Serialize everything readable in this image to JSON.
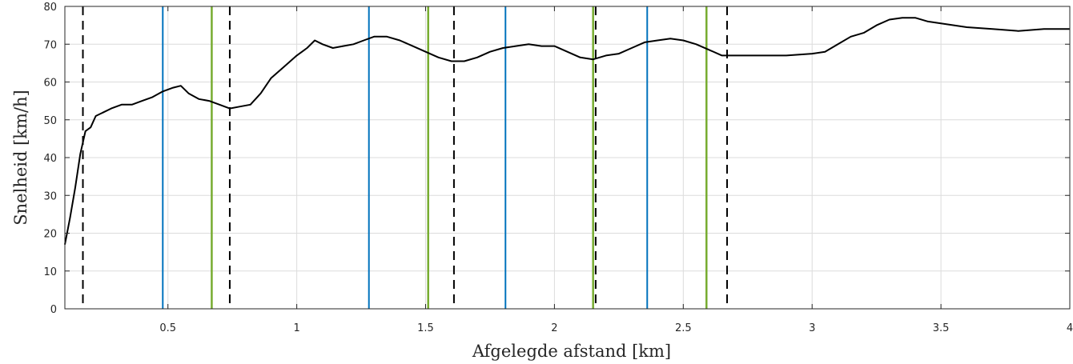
{
  "chart_data": {
    "type": "line",
    "xlabel": "Afgelegde afstand [km]",
    "ylabel": "Snelheid [km/h]",
    "xlim": [
      0.1,
      4.0
    ],
    "ylim": [
      0,
      80
    ],
    "grid": true,
    "x_ticks": [
      0.5,
      1,
      1.5,
      2,
      2.5,
      3,
      3.5,
      4
    ],
    "x_tick_labels": [
      "0.5",
      "1",
      "1.5",
      "2",
      "2.5",
      "3",
      "3.5",
      "4"
    ],
    "y_ticks": [
      0,
      10,
      20,
      30,
      40,
      50,
      60,
      70,
      80
    ],
    "y_tick_labels": [
      "0",
      "10",
      "20",
      "30",
      "40",
      "50",
      "60",
      "70",
      "80"
    ],
    "series": [
      {
        "color": "#000000",
        "x": [
          0.1,
          0.12,
          0.14,
          0.16,
          0.18,
          0.2,
          0.22,
          0.25,
          0.28,
          0.32,
          0.36,
          0.4,
          0.44,
          0.48,
          0.52,
          0.55,
          0.58,
          0.62,
          0.66,
          0.7,
          0.74,
          0.78,
          0.82,
          0.86,
          0.9,
          0.95,
          1.0,
          1.04,
          1.07,
          1.1,
          1.14,
          1.18,
          1.22,
          1.26,
          1.3,
          1.35,
          1.4,
          1.45,
          1.5,
          1.55,
          1.6,
          1.65,
          1.7,
          1.75,
          1.8,
          1.85,
          1.9,
          1.95,
          2.0,
          2.05,
          2.1,
          2.15,
          2.2,
          2.25,
          2.3,
          2.35,
          2.4,
          2.45,
          2.5,
          2.55,
          2.6,
          2.65,
          2.7,
          2.8,
          2.9,
          3.0,
          3.05,
          3.1,
          3.15,
          3.2,
          3.25,
          3.3,
          3.35,
          3.4,
          3.45,
          3.5,
          3.6,
          3.7,
          3.8,
          3.9,
          4.0
        ],
        "y": [
          17,
          24,
          32,
          41,
          47,
          48,
          51,
          52,
          53,
          54,
          54,
          55,
          56,
          57.5,
          58.5,
          59,
          57,
          55.5,
          55,
          54,
          53,
          53.5,
          54,
          57,
          61,
          64,
          67,
          69,
          71,
          70,
          69,
          69.5,
          70,
          71,
          72,
          72,
          71,
          69.5,
          68,
          66.5,
          65.5,
          65.5,
          66.5,
          68,
          69,
          69.5,
          70,
          69.5,
          69.5,
          68,
          66.5,
          66,
          67,
          67.5,
          69,
          70.5,
          71,
          71.5,
          71,
          70,
          68.5,
          67,
          67,
          67,
          67,
          67.5,
          68,
          70,
          72,
          73,
          75,
          76.5,
          77,
          77,
          76,
          75.5,
          74.5,
          74,
          73.5,
          74,
          74
        ]
      }
    ],
    "vertical_lines": {
      "black_dashed": {
        "color": "#000000",
        "x": [
          0.17,
          0.74,
          1.61,
          2.16,
          2.67
        ]
      },
      "blue": {
        "color": "#0072bd",
        "x": [
          0.48,
          1.28,
          1.81,
          2.36
        ]
      },
      "green": {
        "color": "#77ac30",
        "x": [
          0.67,
          1.51,
          2.15,
          2.59
        ]
      }
    }
  }
}
